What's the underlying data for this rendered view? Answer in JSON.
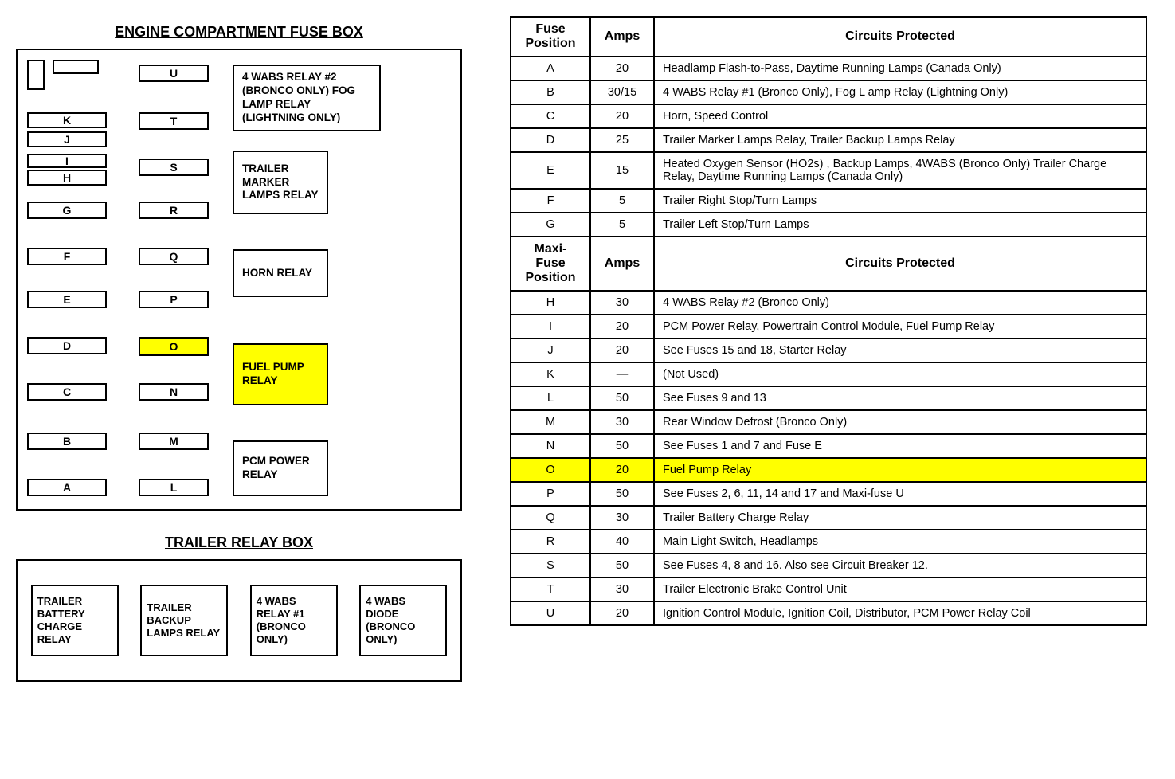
{
  "colors": {
    "highlight": "#ffff00",
    "border": "#000000",
    "background": "#ffffff",
    "text": "#000000"
  },
  "titles": {
    "engine_box": "ENGINE COMPARTMENT FUSE BOX",
    "trailer_box": "TRAILER RELAY BOX"
  },
  "fusebox": {
    "col1": [
      {
        "id": "K",
        "cls": "f-K"
      },
      {
        "id": "J",
        "cls": "f-J"
      },
      {
        "id": "I",
        "cls": "f-I"
      },
      {
        "id": "H",
        "cls": "f-H"
      },
      {
        "id": "G",
        "cls": "f-G"
      },
      {
        "id": "F",
        "cls": "f-F"
      },
      {
        "id": "E",
        "cls": "f-E"
      },
      {
        "id": "D",
        "cls": "f-D"
      },
      {
        "id": "C",
        "cls": "f-C"
      },
      {
        "id": "B",
        "cls": "f-B"
      },
      {
        "id": "A",
        "cls": "f-A"
      }
    ],
    "col2": [
      {
        "id": "U",
        "cls": "f-U"
      },
      {
        "id": "T",
        "cls": "f-T"
      },
      {
        "id": "S",
        "cls": "f-S"
      },
      {
        "id": "R",
        "cls": "f-R"
      },
      {
        "id": "Q",
        "cls": "f-Q"
      },
      {
        "id": "P",
        "cls": "f-P"
      },
      {
        "id": "O",
        "cls": "f-O",
        "highlight": true
      },
      {
        "id": "N",
        "cls": "f-N"
      },
      {
        "id": "M",
        "cls": "f-M"
      },
      {
        "id": "L",
        "cls": "f-L"
      }
    ],
    "relays": [
      {
        "cls": "r-1",
        "label": "4 WABS RELAY #2 (BRONCO ONLY) FOG LAMP RELAY (LIGHTNING ONLY)"
      },
      {
        "cls": "r-2",
        "label": "TRAILER MARKER LAMPS RELAY"
      },
      {
        "cls": "r-3",
        "label": "HORN RELAY"
      },
      {
        "cls": "r-4",
        "label": "FUEL PUMP RELAY",
        "highlight": true
      },
      {
        "cls": "r-5",
        "label": "PCM POWER RELAY"
      }
    ]
  },
  "trailer_relays": [
    "TRAILER BATTERY CHARGE RELAY",
    "TRAILER BACKUP LAMPS RELAY",
    "4 WABS RELAY #1 (BRONCO ONLY)",
    "4 WABS DIODE (BRONCO ONLY)"
  ],
  "table": {
    "header1": {
      "c1": "Fuse Position",
      "c2": "Amps",
      "c3": "Circuits Protected"
    },
    "rows1": [
      {
        "pos": "A",
        "amps": "20",
        "desc": "Headlamp Flash-to-Pass, Daytime Running Lamps (Canada Only)"
      },
      {
        "pos": "B",
        "amps": "30/15",
        "desc": "4 WABS Relay #1 (Bronco Only), Fog L amp Relay (Lightning Only)"
      },
      {
        "pos": "C",
        "amps": "20",
        "desc": "Horn, Speed Control"
      },
      {
        "pos": "D",
        "amps": "25",
        "desc": "Trailer Marker Lamps Relay, Trailer Backup Lamps Relay"
      },
      {
        "pos": "E",
        "amps": "15",
        "desc": "Heated Oxygen Sensor (HO2s) , Backup Lamps, 4WABS (Bronco Only) Trailer Charge Relay, Daytime Running Lamps (Canada Only)"
      },
      {
        "pos": "F",
        "amps": "5",
        "desc": "Trailer Right Stop/Turn Lamps"
      },
      {
        "pos": "G",
        "amps": "5",
        "desc": "Trailer Left Stop/Turn Lamps"
      }
    ],
    "header2": {
      "c1": "Maxi-Fuse Position",
      "c2": "Amps",
      "c3": "Circuits Protected"
    },
    "rows2": [
      {
        "pos": "H",
        "amps": "30",
        "desc": "4 WABS Relay #2 (Bronco Only)"
      },
      {
        "pos": "I",
        "amps": "20",
        "desc": "PCM Power Relay, Powertrain Control Module, Fuel Pump Relay"
      },
      {
        "pos": "J",
        "amps": "20",
        "desc": "See Fuses 15 and 18, Starter Relay"
      },
      {
        "pos": "K",
        "amps": "—",
        "desc": "(Not Used)"
      },
      {
        "pos": "L",
        "amps": "50",
        "desc": "See Fuses 9 and 13"
      },
      {
        "pos": "M",
        "amps": "30",
        "desc": "Rear Window Defrost (Bronco Only)"
      },
      {
        "pos": "N",
        "amps": "50",
        "desc": "See Fuses 1 and 7 and Fuse E"
      },
      {
        "pos": "O",
        "amps": "20",
        "desc": "Fuel Pump Relay",
        "highlight": true
      },
      {
        "pos": "P",
        "amps": "50",
        "desc": "See Fuses 2, 6, 11, 14 and 17 and Maxi-fuse U"
      },
      {
        "pos": "Q",
        "amps": "30",
        "desc": "Trailer Battery Charge Relay"
      },
      {
        "pos": "R",
        "amps": "40",
        "desc": "Main Light Switch, Headlamps"
      },
      {
        "pos": "S",
        "amps": "50",
        "desc": "See Fuses 4, 8 and 16. Also see Circuit Breaker 12."
      },
      {
        "pos": "T",
        "amps": "30",
        "desc": "Trailer Electronic Brake Control Unit"
      },
      {
        "pos": "U",
        "amps": "20",
        "desc": "Ignition Control Module, Ignition Coil, Distributor, PCM Power Relay Coil"
      }
    ]
  }
}
